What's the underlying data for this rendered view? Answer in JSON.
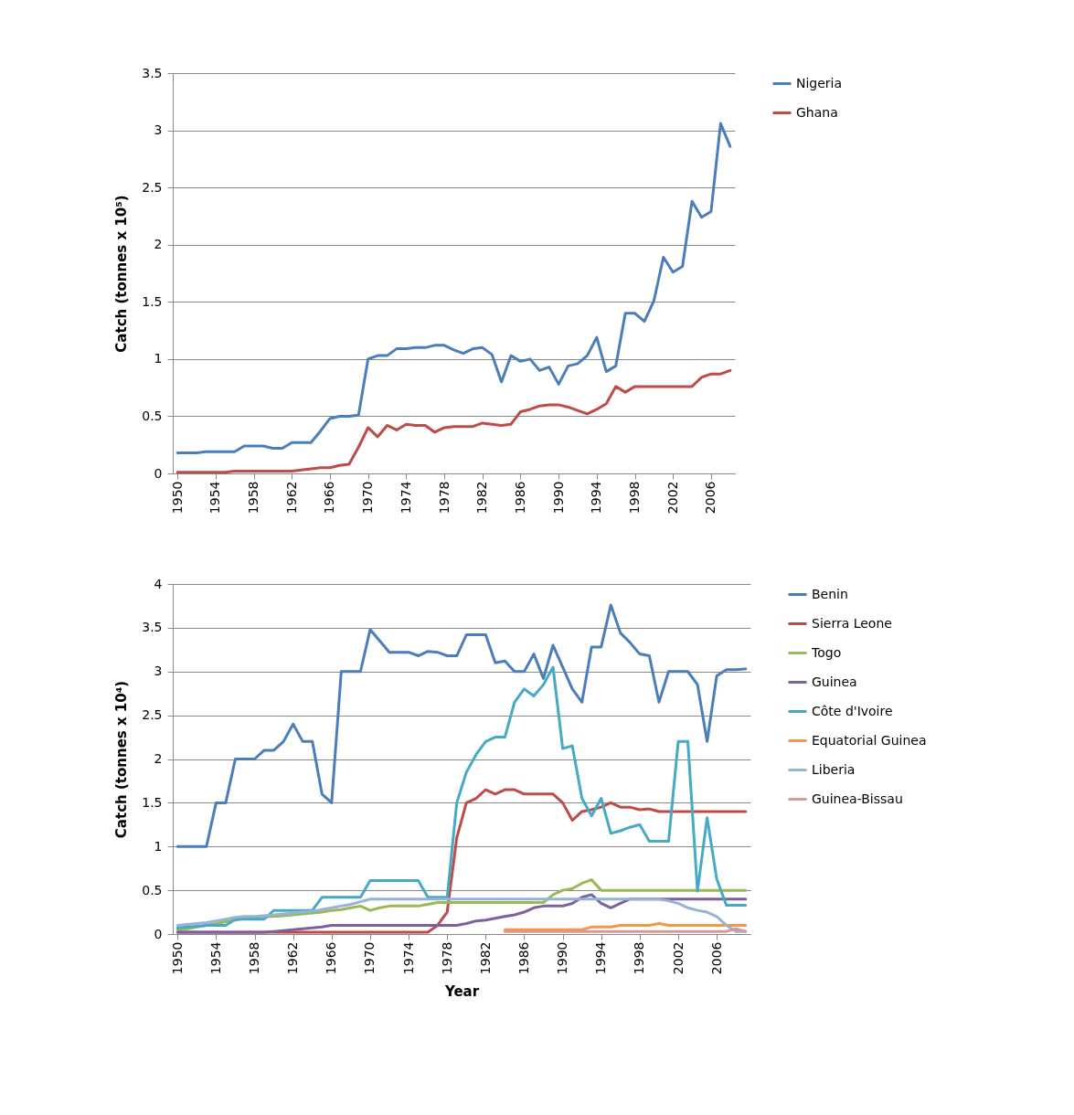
{
  "chart_data": [
    {
      "type": "line",
      "ylabel": "Catch (tonnes x 10⁵)",
      "xlim": [
        1949.5,
        2008.5
      ],
      "xticks": [
        1950,
        1954,
        1958,
        1962,
        1966,
        1970,
        1974,
        1978,
        1982,
        1986,
        1990,
        1994,
        1998,
        2002,
        2006
      ],
      "ylim": [
        0,
        3.5
      ],
      "yticks": [
        0,
        0.5,
        1,
        1.5,
        2,
        2.5,
        3,
        3.5
      ],
      "grid": "y",
      "legend": "right",
      "x": [
        1950,
        1951,
        1952,
        1953,
        1954,
        1955,
        1956,
        1957,
        1958,
        1959,
        1960,
        1961,
        1962,
        1963,
        1964,
        1965,
        1966,
        1967,
        1968,
        1969,
        1970,
        1971,
        1972,
        1973,
        1974,
        1975,
        1976,
        1977,
        1978,
        1979,
        1980,
        1981,
        1982,
        1983,
        1984,
        1985,
        1986,
        1987,
        1988,
        1989,
        1990,
        1991,
        1992,
        1993,
        1994,
        1995,
        1996,
        1997,
        1998,
        1999,
        2000,
        2001,
        2002,
        2003,
        2004,
        2005,
        2006,
        2007,
        2008
      ],
      "series": [
        {
          "name": "Nigeria",
          "color": "#4a7ebb",
          "values": [
            0.18,
            0.18,
            0.18,
            0.19,
            0.19,
            0.19,
            0.19,
            0.24,
            0.24,
            0.24,
            0.22,
            0.22,
            0.27,
            0.27,
            0.27,
            0.37,
            0.48,
            0.5,
            0.5,
            0.51,
            1.0,
            1.03,
            1.03,
            1.09,
            1.09,
            1.1,
            1.1,
            1.12,
            1.12,
            1.08,
            1.05,
            1.09,
            1.1,
            1.04,
            0.8,
            1.03,
            0.98,
            1.0,
            0.9,
            0.93,
            0.78,
            0.94,
            0.96,
            1.03,
            1.19,
            0.89,
            0.94,
            1.4,
            1.4,
            1.33,
            1.51,
            1.89,
            1.76,
            1.81,
            2.38,
            2.24,
            2.29,
            3.06,
            2.86
          ]
        },
        {
          "name": "Ghana",
          "color": "#be4b48",
          "values": [
            0.01,
            0.01,
            0.01,
            0.01,
            0.01,
            0.01,
            0.02,
            0.02,
            0.02,
            0.02,
            0.02,
            0.02,
            0.02,
            0.03,
            0.04,
            0.05,
            0.05,
            0.07,
            0.08,
            0.23,
            0.4,
            0.32,
            0.42,
            0.38,
            0.43,
            0.42,
            0.42,
            0.36,
            0.4,
            0.41,
            0.41,
            0.41,
            0.44,
            0.43,
            0.42,
            0.43,
            0.54,
            0.56,
            0.59,
            0.6,
            0.6,
            0.58,
            0.55,
            0.52,
            0.56,
            0.61,
            0.76,
            0.71,
            0.76,
            0.76,
            0.76,
            0.76,
            0.76,
            0.76,
            0.76,
            0.84,
            0.87,
            0.87,
            0.9
          ]
        }
      ]
    },
    {
      "type": "line",
      "xlabel": "Year",
      "ylabel": "Catch (tonnes x 10⁴)",
      "xlim": [
        1949.5,
        2009.5
      ],
      "xticks": [
        1950,
        1954,
        1958,
        1962,
        1966,
        1970,
        1974,
        1978,
        1982,
        1986,
        1990,
        1994,
        1998,
        2002,
        2006
      ],
      "ylim": [
        0,
        4
      ],
      "yticks": [
        0,
        0.5,
        1,
        1.5,
        2,
        2.5,
        3,
        3.5,
        4
      ],
      "grid": "y",
      "legend": "right",
      "x": [
        1950,
        1951,
        1952,
        1953,
        1954,
        1955,
        1956,
        1957,
        1958,
        1959,
        1960,
        1961,
        1962,
        1963,
        1964,
        1965,
        1966,
        1967,
        1968,
        1969,
        1970,
        1971,
        1972,
        1973,
        1974,
        1975,
        1976,
        1977,
        1978,
        1979,
        1980,
        1981,
        1982,
        1983,
        1984,
        1985,
        1986,
        1987,
        1988,
        1989,
        1990,
        1991,
        1992,
        1993,
        1994,
        1995,
        1996,
        1997,
        1998,
        1999,
        2000,
        2001,
        2002,
        2003,
        2004,
        2005,
        2006,
        2007,
        2008,
        2009
      ],
      "series": [
        {
          "name": "Benin",
          "color": "#4a7ebb",
          "values": [
            1.0,
            1.0,
            1.0,
            1.0,
            1.5,
            1.5,
            2.0,
            2.0,
            2.0,
            2.1,
            2.1,
            2.2,
            2.4,
            2.2,
            2.2,
            1.6,
            1.5,
            3.0,
            3.0,
            3.0,
            3.48,
            3.35,
            3.22,
            3.22,
            3.22,
            3.18,
            3.23,
            3.22,
            3.18,
            3.18,
            3.42,
            3.42,
            3.42,
            3.1,
            3.12,
            3.0,
            3.0,
            3.2,
            2.92,
            3.3,
            3.05,
            2.8,
            2.65,
            3.28,
            3.28,
            3.76,
            3.44,
            3.33,
            3.2,
            3.18,
            2.65,
            3.0,
            3.0,
            3.0,
            2.85,
            2.2,
            2.95,
            3.02,
            3.02,
            3.03
          ]
        },
        {
          "name": "Sierra Leone",
          "color": "#be4b48",
          "values": [
            0.02,
            0.02,
            0.02,
            0.02,
            0.02,
            0.02,
            0.02,
            0.02,
            0.02,
            0.02,
            0.02,
            0.02,
            0.02,
            0.02,
            0.02,
            0.02,
            0.02,
            0.02,
            0.02,
            0.02,
            0.02,
            0.02,
            0.02,
            0.02,
            0.02,
            0.02,
            0.02,
            0.1,
            0.25,
            1.1,
            1.5,
            1.55,
            1.65,
            1.6,
            1.65,
            1.65,
            1.6,
            1.6,
            1.6,
            1.6,
            1.5,
            1.3,
            1.4,
            1.42,
            1.45,
            1.5,
            1.45,
            1.45,
            1.42,
            1.43,
            1.4,
            1.4,
            1.4,
            1.4,
            1.4,
            1.4,
            1.4,
            1.4,
            1.4,
            1.4
          ]
        },
        {
          "name": "Togo",
          "color": "#98b954",
          "values": [
            0.05,
            0.06,
            0.08,
            0.1,
            0.12,
            0.14,
            0.16,
            0.18,
            0.19,
            0.2,
            0.2,
            0.21,
            0.22,
            0.23,
            0.24,
            0.25,
            0.27,
            0.28,
            0.3,
            0.32,
            0.27,
            0.3,
            0.32,
            0.32,
            0.32,
            0.32,
            0.34,
            0.36,
            0.36,
            0.36,
            0.36,
            0.36,
            0.36,
            0.36,
            0.36,
            0.36,
            0.36,
            0.36,
            0.36,
            0.45,
            0.5,
            0.52,
            0.58,
            0.62,
            0.5,
            0.5,
            0.5,
            0.5,
            0.5,
            0.5,
            0.5,
            0.5,
            0.5,
            0.5,
            0.5,
            0.5,
            0.5,
            0.5,
            0.5,
            0.5
          ]
        },
        {
          "name": "Guinea",
          "color": "#7d60a0",
          "values": [
            0.02,
            0.02,
            0.02,
            0.02,
            0.02,
            0.02,
            0.02,
            0.02,
            0.02,
            0.02,
            0.03,
            0.04,
            0.05,
            0.06,
            0.07,
            0.08,
            0.1,
            0.1,
            0.1,
            0.1,
            0.1,
            0.1,
            0.1,
            0.1,
            0.1,
            0.1,
            0.1,
            0.1,
            0.1,
            0.1,
            0.12,
            0.15,
            0.16,
            0.18,
            0.2,
            0.22,
            0.25,
            0.3,
            0.32,
            0.32,
            0.32,
            0.35,
            0.42,
            0.45,
            0.35,
            0.3,
            0.35,
            0.4,
            0.4,
            0.4,
            0.4,
            0.4,
            0.4,
            0.4,
            0.4,
            0.4,
            0.4,
            0.4,
            0.4,
            0.4
          ]
        },
        {
          "name": "Côte d'Ivoire",
          "color": "#46aac5",
          "values": [
            0.07,
            0.08,
            0.09,
            0.1,
            0.1,
            0.1,
            0.17,
            0.17,
            0.17,
            0.17,
            0.27,
            0.27,
            0.27,
            0.27,
            0.27,
            0.42,
            0.42,
            0.42,
            0.42,
            0.42,
            0.61,
            0.61,
            0.61,
            0.61,
            0.61,
            0.61,
            0.42,
            0.42,
            0.42,
            1.5,
            1.85,
            2.05,
            2.2,
            2.25,
            2.25,
            2.65,
            2.8,
            2.72,
            2.85,
            3.05,
            2.12,
            2.15,
            1.55,
            1.35,
            1.55,
            1.15,
            1.18,
            1.22,
            1.25,
            1.06,
            1.06,
            1.06,
            2.2,
            2.2,
            0.49,
            1.33,
            0.63,
            0.33,
            0.33,
            0.33
          ]
        },
        {
          "name": "Equatorial Guinea",
          "color": "#f79646",
          "values": [
            null,
            null,
            null,
            null,
            null,
            null,
            null,
            null,
            null,
            null,
            null,
            null,
            null,
            null,
            null,
            null,
            null,
            null,
            null,
            null,
            null,
            null,
            null,
            null,
            null,
            null,
            null,
            null,
            null,
            null,
            null,
            null,
            null,
            null,
            0.05,
            0.05,
            0.05,
            0.05,
            0.05,
            0.05,
            0.05,
            0.05,
            0.05,
            0.08,
            0.08,
            0.08,
            0.1,
            0.1,
            0.1,
            0.1,
            0.12,
            0.1,
            0.1,
            0.1,
            0.1,
            0.1,
            0.1,
            0.1,
            0.1,
            0.1
          ]
        },
        {
          "name": "Liberia",
          "color": "#95b3d7",
          "values": [
            0.1,
            0.11,
            0.12,
            0.13,
            0.15,
            0.17,
            0.19,
            0.2,
            0.2,
            0.21,
            0.22,
            0.23,
            0.24,
            0.25,
            0.26,
            0.28,
            0.3,
            0.32,
            0.34,
            0.37,
            0.4,
            0.4,
            0.4,
            0.4,
            0.4,
            0.4,
            0.4,
            0.4,
            0.4,
            0.4,
            0.4,
            0.4,
            0.4,
            0.4,
            0.4,
            0.4,
            0.4,
            0.4,
            0.4,
            0.4,
            0.4,
            0.4,
            0.4,
            0.4,
            0.4,
            0.4,
            0.4,
            0.4,
            0.4,
            0.4,
            0.4,
            0.38,
            0.35,
            0.3,
            0.27,
            0.25,
            0.2,
            0.1,
            0.03,
            0.03
          ]
        },
        {
          "name": "Guinea-Bissau",
          "color": "#d99694",
          "values": [
            null,
            null,
            null,
            null,
            null,
            null,
            null,
            null,
            null,
            null,
            null,
            null,
            null,
            null,
            null,
            null,
            null,
            null,
            null,
            null,
            null,
            null,
            null,
            null,
            null,
            null,
            null,
            null,
            null,
            null,
            null,
            null,
            null,
            null,
            0.03,
            0.03,
            0.03,
            0.03,
            0.03,
            0.03,
            0.03,
            0.03,
            0.03,
            0.03,
            0.03,
            0.03,
            0.03,
            0.03,
            0.03,
            0.03,
            0.03,
            0.03,
            0.03,
            0.03,
            0.03,
            0.03,
            0.03,
            0.03,
            0.06,
            0.03
          ]
        }
      ]
    }
  ]
}
